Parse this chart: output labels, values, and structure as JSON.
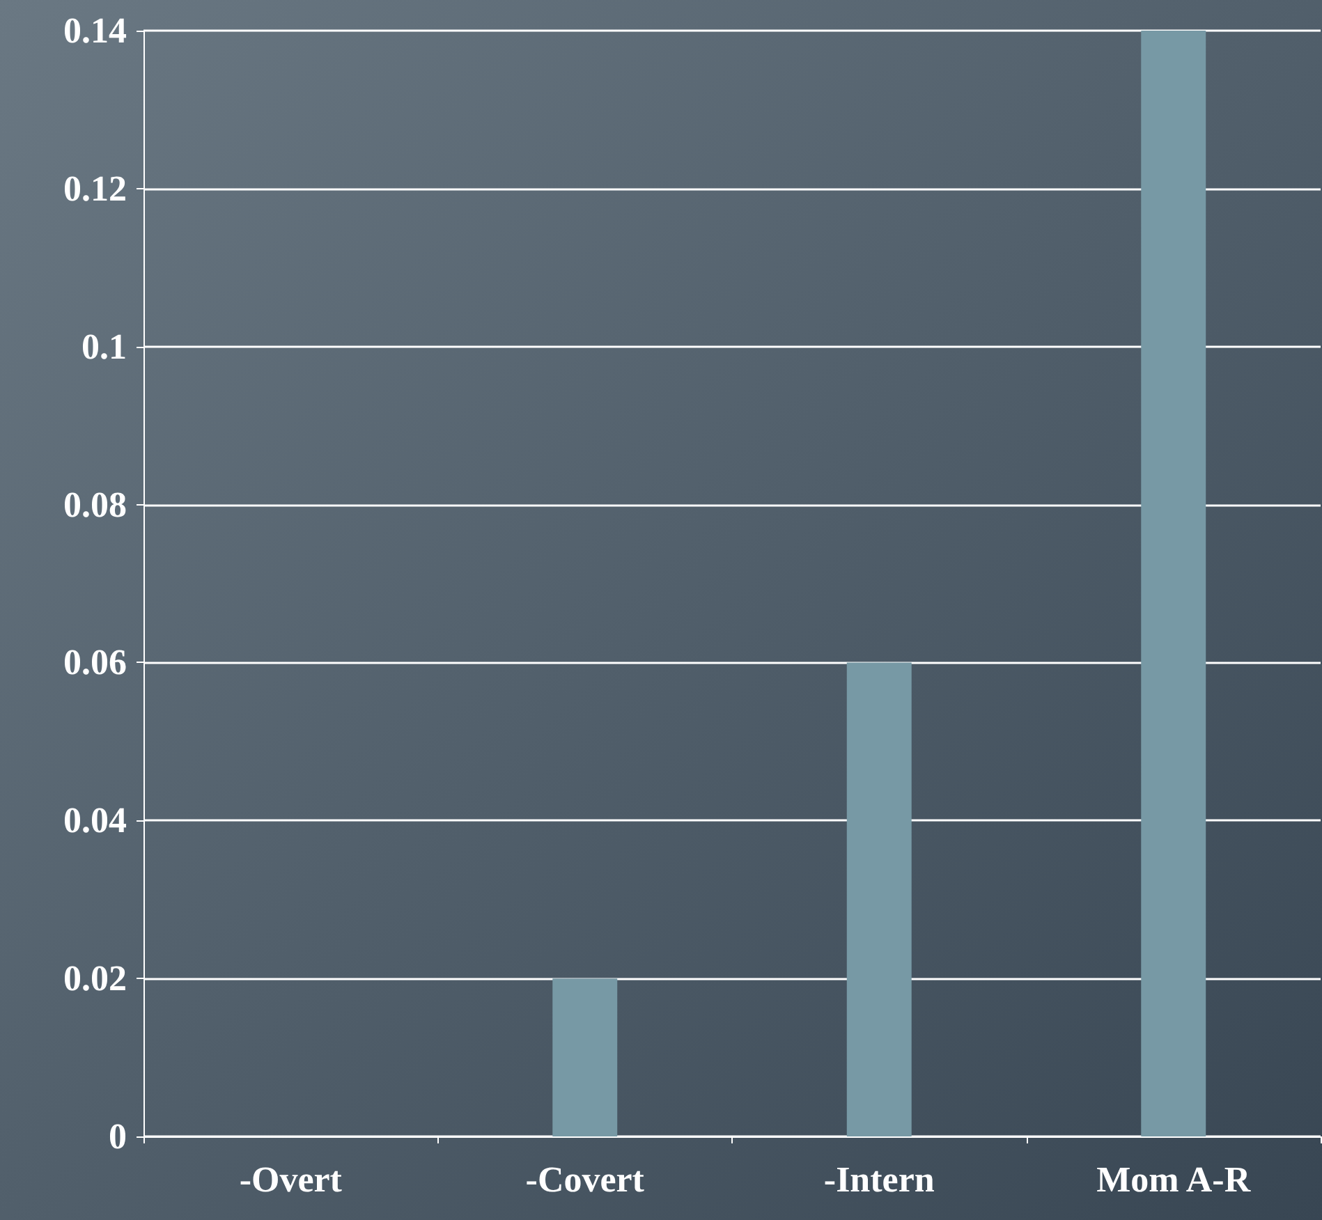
{
  "chart_data": {
    "type": "bar",
    "categories": [
      "-Overt",
      "-Covert",
      "-Intern",
      "Mom A-R"
    ],
    "values": [
      0,
      0.02,
      0.06,
      0.14
    ],
    "color": "#7799a5",
    "ylim": [
      0,
      0.14
    ],
    "yticks": [
      0,
      0.02,
      0.04,
      0.06,
      0.08,
      0.1,
      0.12,
      0.14
    ],
    "grid": "y"
  }
}
